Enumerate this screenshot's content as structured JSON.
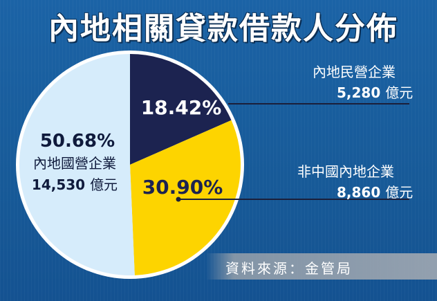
{
  "title": "內地相關貸款借款人分佈",
  "source": "資料來源：金管局",
  "colors": {
    "background": "#1a5fa0",
    "slice_state": "#d6ecfb",
    "slice_private": "#1c2350",
    "slice_foreign": "#fdd400",
    "pie_border": "#ffffff",
    "leader_line": "#1b1f3a"
  },
  "chart_data": {
    "type": "pie",
    "title": "內地相關貸款借款人分佈",
    "unit": "億元",
    "slices": [
      {
        "name": "內地民營企業",
        "percent": 18.42,
        "value": 5280,
        "value_text": "5,280",
        "percent_text": "18.42%"
      },
      {
        "name": "非中國內地企業",
        "percent": 30.9,
        "value": 8860,
        "value_text": "8,860",
        "percent_text": "30.90%"
      },
      {
        "name": "內地國營企業",
        "percent": 50.68,
        "value": 14530,
        "value_text": "14,530",
        "percent_text": "50.68%"
      }
    ]
  }
}
